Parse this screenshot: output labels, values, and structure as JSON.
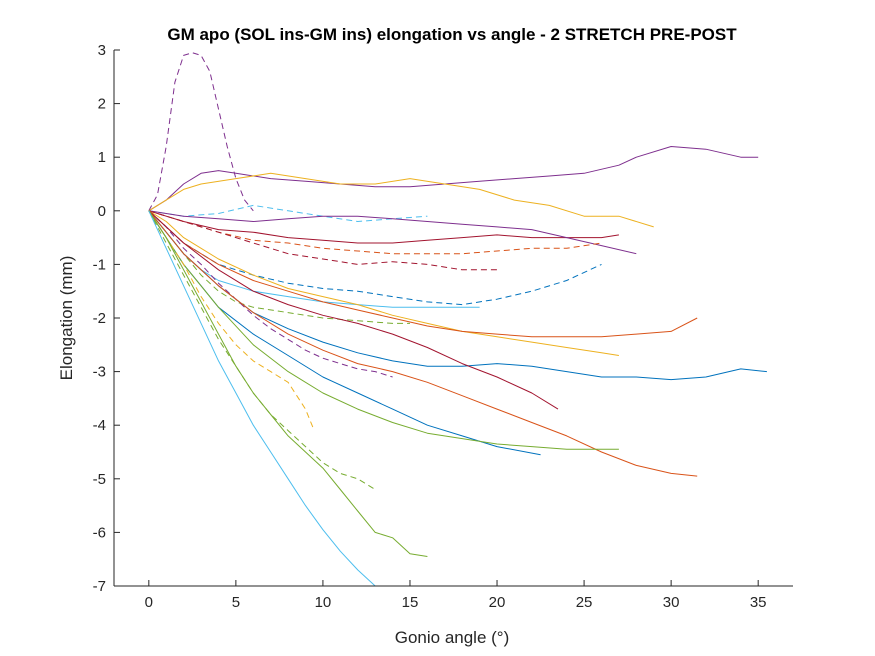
{
  "chart_data": {
    "type": "line",
    "title": "GM apo (SOL ins-GM ins) elongation vs angle - 2 STRETCH PRE-POST",
    "xlabel": "Gonio angle (°)",
    "ylabel": "Elongation (mm)",
    "xlim": [
      -2,
      37
    ],
    "ylim": [
      -7,
      3
    ],
    "xticks": [
      "0",
      "5",
      "10",
      "15",
      "20",
      "25",
      "30",
      "35"
    ],
    "yticks": [
      "3",
      "2",
      "1",
      "0",
      "-1",
      "-2",
      "-3",
      "-4",
      "-5",
      "-6",
      "-7"
    ],
    "grid": false,
    "series": [
      {
        "color": "#7E2F8E",
        "dash": false,
        "x": [
          0,
          1,
          2,
          3,
          4,
          5,
          7,
          9,
          11,
          13,
          15,
          17,
          19,
          21,
          23,
          25,
          27,
          28,
          30,
          32,
          34,
          35
        ],
        "y": [
          0,
          0.2,
          0.5,
          0.7,
          0.75,
          0.7,
          0.6,
          0.55,
          0.5,
          0.45,
          0.45,
          0.5,
          0.55,
          0.6,
          0.65,
          0.7,
          0.85,
          1.0,
          1.2,
          1.15,
          1.0,
          1.0
        ]
      },
      {
        "color": "#7E2F8E",
        "dash": true,
        "x": [
          0,
          0.5,
          1,
          1.5,
          2,
          2.5,
          3,
          3.5,
          4,
          4.5,
          5,
          5.5,
          6
        ],
        "y": [
          0,
          0.3,
          1.2,
          2.4,
          2.9,
          2.95,
          2.9,
          2.6,
          1.9,
          1.2,
          0.6,
          0.2,
          0
        ]
      },
      {
        "color": "#EDB120",
        "dash": false,
        "x": [
          0,
          1,
          2,
          3,
          5,
          7,
          9,
          11,
          13,
          15,
          17,
          19,
          21,
          23,
          25,
          27,
          29
        ],
        "y": [
          0,
          0.2,
          0.4,
          0.5,
          0.6,
          0.7,
          0.6,
          0.5,
          0.5,
          0.6,
          0.5,
          0.4,
          0.2,
          0.1,
          -0.1,
          -0.1,
          -0.3
        ]
      },
      {
        "color": "#4DBEEE",
        "dash": true,
        "x": [
          0,
          2,
          4,
          6,
          8,
          10,
          12,
          14,
          16
        ],
        "y": [
          0,
          -0.1,
          -0.05,
          0.1,
          0.0,
          -0.1,
          -0.2,
          -0.15,
          -0.1
        ]
      },
      {
        "color": "#A2142F",
        "dash": false,
        "x": [
          0,
          2,
          4,
          6,
          8,
          10,
          12,
          14,
          16,
          18,
          20,
          22,
          24,
          26,
          27
        ],
        "y": [
          0,
          -0.2,
          -0.35,
          -0.4,
          -0.5,
          -0.55,
          -0.6,
          -0.6,
          -0.55,
          -0.5,
          -0.45,
          -0.5,
          -0.5,
          -0.5,
          -0.45
        ]
      },
      {
        "color": "#7E2F8E",
        "dash": false,
        "x": [
          0,
          2,
          4,
          6,
          8,
          10,
          12,
          14,
          16,
          18,
          20,
          22,
          24,
          26,
          28
        ],
        "y": [
          0,
          -0.1,
          -0.15,
          -0.2,
          -0.15,
          -0.1,
          -0.1,
          -0.15,
          -0.2,
          -0.25,
          -0.3,
          -0.35,
          -0.5,
          -0.65,
          -0.8
        ]
      },
      {
        "color": "#D95319",
        "dash": true,
        "x": [
          0,
          2,
          4,
          6,
          8,
          10,
          12,
          14,
          16,
          18,
          20,
          22,
          24,
          26
        ],
        "y": [
          0,
          -0.2,
          -0.4,
          -0.55,
          -0.6,
          -0.7,
          -0.75,
          -0.8,
          -0.8,
          -0.8,
          -0.75,
          -0.7,
          -0.7,
          -0.6
        ]
      },
      {
        "color": "#A2142F",
        "dash": true,
        "x": [
          0,
          2,
          4,
          6,
          8,
          10,
          12,
          14,
          16,
          18,
          20
        ],
        "y": [
          0,
          -0.2,
          -0.4,
          -0.6,
          -0.8,
          -0.9,
          -1.0,
          -0.95,
          -1.0,
          -1.1,
          -1.1
        ]
      },
      {
        "color": "#0072BD",
        "dash": true,
        "x": [
          0,
          1,
          2,
          3,
          4,
          6,
          8,
          10,
          12,
          14,
          16,
          18,
          20,
          22,
          24,
          26
        ],
        "y": [
          0,
          -0.3,
          -0.6,
          -0.8,
          -1.0,
          -1.2,
          -1.35,
          -1.45,
          -1.5,
          -1.6,
          -1.7,
          -1.75,
          -1.65,
          -1.5,
          -1.3,
          -1.0
        ]
      },
      {
        "color": "#4DBEEE",
        "dash": false,
        "x": [
          0,
          1,
          2,
          3,
          4,
          6,
          8,
          10,
          12,
          14,
          16,
          18,
          19
        ],
        "y": [
          0,
          -0.4,
          -0.8,
          -1.1,
          -1.3,
          -1.5,
          -1.6,
          -1.7,
          -1.75,
          -1.8,
          -1.8,
          -1.8,
          -1.8
        ]
      },
      {
        "color": "#77AC30",
        "dash": true,
        "x": [
          0,
          1,
          2,
          3,
          4,
          5,
          6,
          8,
          10,
          12,
          14,
          15
        ],
        "y": [
          0,
          -0.4,
          -0.8,
          -1.2,
          -1.5,
          -1.7,
          -1.8,
          -1.9,
          -2.0,
          -2.05,
          -2.1,
          -2.1
        ]
      },
      {
        "color": "#EDB120",
        "dash": false,
        "x": [
          0,
          1,
          2,
          4,
          6,
          8,
          10,
          12,
          14,
          16,
          18,
          20,
          22,
          24,
          26,
          27
        ],
        "y": [
          0,
          -0.2,
          -0.5,
          -0.9,
          -1.2,
          -1.45,
          -1.6,
          -1.75,
          -1.95,
          -2.1,
          -2.25,
          -2.35,
          -2.45,
          -2.55,
          -2.65,
          -2.7
        ]
      },
      {
        "color": "#D95319",
        "dash": false,
        "x": [
          0,
          1,
          2,
          4,
          6,
          8,
          10,
          12,
          14,
          16,
          18,
          20,
          22,
          24,
          26,
          28,
          30,
          31.5
        ],
        "y": [
          0,
          -0.3,
          -0.6,
          -1.0,
          -1.3,
          -1.5,
          -1.7,
          -1.85,
          -2.0,
          -2.15,
          -2.25,
          -2.3,
          -2.35,
          -2.35,
          -2.35,
          -2.3,
          -2.25,
          -2.0
        ]
      },
      {
        "color": "#0072BD",
        "dash": false,
        "x": [
          0,
          1,
          2,
          4,
          6,
          8,
          10,
          12,
          14,
          16,
          18,
          20,
          22,
          24,
          26,
          28,
          30,
          32,
          34,
          35.5
        ],
        "y": [
          0,
          -0.4,
          -0.8,
          -1.4,
          -1.9,
          -2.2,
          -2.45,
          -2.65,
          -2.8,
          -2.9,
          -2.9,
          -2.85,
          -2.9,
          -3.0,
          -3.1,
          -3.1,
          -3.15,
          -3.1,
          -2.95,
          -3.0
        ]
      },
      {
        "color": "#7E2F8E",
        "dash": true,
        "x": [
          0,
          1,
          2,
          3,
          4,
          5,
          6,
          7,
          8,
          9,
          10,
          11,
          12,
          13,
          14
        ],
        "y": [
          0,
          -0.3,
          -0.7,
          -1.0,
          -1.35,
          -1.65,
          -1.95,
          -2.2,
          -2.4,
          -2.6,
          -2.75,
          -2.85,
          -2.95,
          -3.0,
          -3.1
        ]
      },
      {
        "color": "#A2142F",
        "dash": false,
        "x": [
          0,
          1,
          2,
          4,
          6,
          8,
          10,
          12,
          14,
          16,
          18,
          20,
          22,
          23.5
        ],
        "y": [
          0,
          -0.3,
          -0.6,
          -1.1,
          -1.5,
          -1.75,
          -1.95,
          -2.1,
          -2.3,
          -2.55,
          -2.85,
          -3.1,
          -3.4,
          -3.7
        ]
      },
      {
        "color": "#0072BD",
        "dash": false,
        "x": [
          0,
          1,
          2,
          3,
          4,
          6,
          8,
          10,
          12,
          14,
          16,
          18,
          20,
          22.5
        ],
        "y": [
          0,
          -0.5,
          -1.0,
          -1.4,
          -1.8,
          -2.3,
          -2.7,
          -3.1,
          -3.4,
          -3.7,
          -4.0,
          -4.2,
          -4.4,
          -4.55
        ]
      },
      {
        "color": "#D95319",
        "dash": false,
        "x": [
          0,
          1,
          2,
          4,
          6,
          8,
          10,
          12,
          14,
          16,
          18,
          20,
          22,
          24,
          26,
          28,
          30,
          31.5
        ],
        "y": [
          0,
          -0.4,
          -0.8,
          -1.4,
          -1.9,
          -2.3,
          -2.6,
          -2.85,
          -3.0,
          -3.2,
          -3.45,
          -3.7,
          -3.95,
          -4.2,
          -4.5,
          -4.75,
          -4.9,
          -4.95
        ]
      },
      {
        "color": "#77AC30",
        "dash": false,
        "x": [
          0,
          1,
          2,
          4,
          6,
          8,
          10,
          12,
          14,
          16,
          18,
          20,
          22,
          24,
          26,
          27
        ],
        "y": [
          0,
          -0.5,
          -1.0,
          -1.8,
          -2.5,
          -3.0,
          -3.4,
          -3.7,
          -3.95,
          -4.15,
          -4.25,
          -4.35,
          -4.4,
          -4.45,
          -4.45,
          -4.45
        ]
      },
      {
        "color": "#EDB120",
        "dash": true,
        "x": [
          0,
          1,
          2,
          3,
          4,
          5,
          6,
          7,
          8,
          9,
          9.5
        ],
        "y": [
          0,
          -0.5,
          -1.0,
          -1.6,
          -2.1,
          -2.5,
          -2.8,
          -3.0,
          -3.2,
          -3.7,
          -4.1
        ]
      },
      {
        "color": "#77AC30",
        "dash": true,
        "x": [
          0,
          1,
          2,
          3,
          4,
          5,
          6,
          7,
          8,
          9,
          10,
          11,
          12,
          13
        ],
        "y": [
          0,
          -0.6,
          -1.2,
          -1.8,
          -2.4,
          -2.9,
          -3.4,
          -3.8,
          -4.1,
          -4.4,
          -4.7,
          -4.9,
          -5.0,
          -5.2
        ]
      },
      {
        "color": "#77AC30",
        "dash": false,
        "x": [
          0,
          1,
          2,
          3,
          4,
          5,
          6,
          7,
          8,
          9,
          10,
          11,
          12,
          13,
          14,
          15,
          16
        ],
        "y": [
          0,
          -0.5,
          -1.1,
          -1.7,
          -2.3,
          -2.9,
          -3.4,
          -3.8,
          -4.2,
          -4.5,
          -4.8,
          -5.2,
          -5.6,
          -6.0,
          -6.1,
          -6.4,
          -6.45
        ]
      },
      {
        "color": "#4DBEEE",
        "dash": false,
        "x": [
          0,
          1,
          2,
          3,
          4,
          5,
          6,
          7,
          8,
          9,
          10,
          11,
          12,
          13
        ],
        "y": [
          0,
          -0.7,
          -1.4,
          -2.1,
          -2.8,
          -3.4,
          -4.0,
          -4.5,
          -5.0,
          -5.5,
          -5.95,
          -6.35,
          -6.7,
          -7.0
        ]
      }
    ]
  }
}
